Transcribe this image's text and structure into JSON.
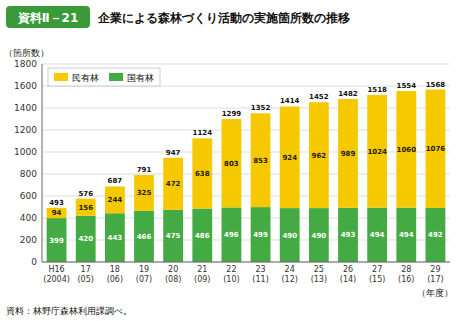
{
  "chart_data": {
    "type": "bar",
    "stacked": true,
    "title": "企業による森林づくり活動の実施箇所数の推移",
    "subtitle": "資料Ⅱ－21",
    "ylabel": "（箇所数）",
    "xlabel": "（年度）",
    "source": "資料：林野庁森林利用課調べ。",
    "categories": [
      "H16\n(2004)",
      "17\n(05)",
      "18\n(06)",
      "19\n(07)",
      "20\n(08)",
      "21\n(09)",
      "22\n(10)",
      "23\n(11)",
      "24\n(12)",
      "25\n(13)",
      "26\n(14)",
      "27\n(15)",
      "28\n(16)",
      "29\n(17)"
    ],
    "series": [
      {
        "name": "国有林",
        "color": "#44aa44",
        "values": [
          399,
          420,
          443,
          466,
          475,
          486,
          496,
          499,
          490,
          490,
          493,
          494,
          494,
          492
        ]
      },
      {
        "name": "民有林",
        "color": "#f5c800",
        "values": [
          94,
          156,
          244,
          325,
          472,
          638,
          803,
          853,
          924,
          962,
          989,
          1024,
          1060,
          1076
        ]
      }
    ],
    "totals": [
      493,
      576,
      687,
      791,
      947,
      1124,
      1299,
      1352,
      1414,
      1452,
      1482,
      1518,
      1554,
      1568
    ],
    "ylim": [
      0,
      1800
    ],
    "yticks": [
      0,
      200,
      400,
      600,
      800,
      1000,
      1200,
      1400,
      1600,
      1800
    ],
    "grid": true,
    "legend": "upper left",
    "data_labels": true
  }
}
